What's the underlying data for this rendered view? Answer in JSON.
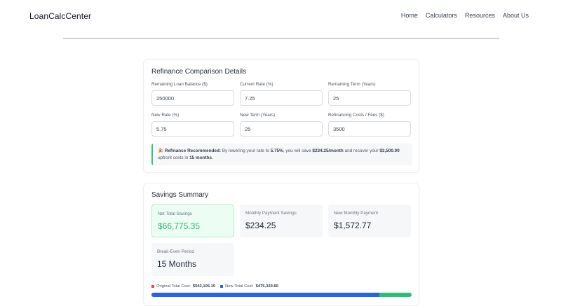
{
  "nav": {
    "brand": "LoanCalcCenter",
    "links": [
      "Home",
      "Calculators",
      "Resources",
      "About Us"
    ]
  },
  "refinance": {
    "title": "Refinance Comparison Details",
    "fields": [
      {
        "label": "Remaining Loan Balance ($)",
        "value": "250000"
      },
      {
        "label": "Current Rate (%)",
        "value": "7.25"
      },
      {
        "label": "Remaining Term (Years)",
        "value": "25"
      },
      {
        "label": "New Rate (%)",
        "value": "5.75"
      },
      {
        "label": "New Term (Years)",
        "value": "25"
      },
      {
        "label": "Refinancing Costs / Fees ($)",
        "value": "3500"
      }
    ],
    "alert": {
      "icon": "party-popper-icon",
      "prefix": "🎉",
      "title": "Refinance Recommended:",
      "t1": "By lowering your rate to",
      "rate": "5.75%",
      "t2": ", you will save",
      "save": "$234.25/month",
      "t3": "and recover your",
      "costs": "$3,500.00",
      "t4": "upfront costs in",
      "months": "15 months",
      "t5": "."
    }
  },
  "summary": {
    "title": "Savings Summary",
    "stats": [
      {
        "label": "Net Total Savings",
        "value": "$66,775.35"
      },
      {
        "label": "Monthly Payment Savings",
        "value": "$234.25"
      },
      {
        "label": "New Monthly Payment",
        "value": "$1,572.77"
      },
      {
        "label": "Break-Even Period",
        "value": "15 Months"
      }
    ],
    "legend": {
      "original_label": "Original Total Cost:",
      "original_value": "$542,105.15",
      "original_color": "#ef4444",
      "new_label": "New Total Cost:",
      "new_value": "$475,329.80",
      "new_color": "#2563eb"
    },
    "progress": {
      "new_fraction": 0.877,
      "fill_color": "#2563eb",
      "remainder_color": "#27c07a"
    },
    "highlight_color": "#34b877"
  }
}
